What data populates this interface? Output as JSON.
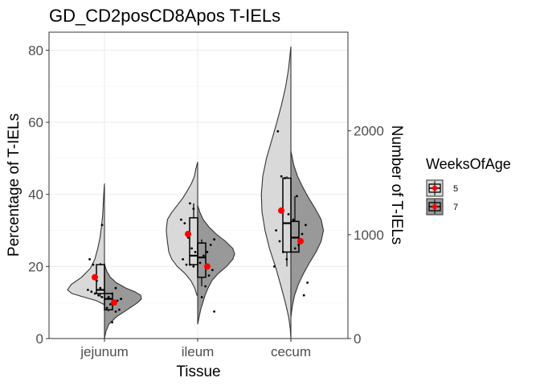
{
  "chart_data": {
    "type": "violin",
    "title": "GD_CD2posCD8Apos T-IELs",
    "xlabel": "Tissue",
    "ylabel": "Percentage of T-IELs",
    "y2label": "Number of T-IELs",
    "categories": [
      "jejunum",
      "ileum",
      "cecum"
    ],
    "ylim": [
      0,
      85
    ],
    "yticks": [
      0,
      20,
      40,
      60,
      80
    ],
    "y2lim": [
      0,
      2950
    ],
    "y2ticks": [
      0,
      1000,
      2000
    ],
    "grid": true,
    "legend": {
      "title": "WeeksOfAge",
      "position": "right",
      "entries": [
        {
          "label": "5",
          "color": "#d9d9d9"
        },
        {
          "label": "7",
          "color": "#999999"
        }
      ]
    },
    "series": [
      {
        "name": "5",
        "fill": "#d9d9d9",
        "side": "left",
        "groups": [
          {
            "category": "jejunum",
            "box": {
              "q1": 12.5,
              "median": 13.5,
              "q3": 20.5,
              "min": 11.5,
              "max": 21
            },
            "mean": 17,
            "points": [
              31.5,
              22,
              20.5,
              16,
              14,
              13.5,
              13,
              12.5,
              12,
              11.5
            ],
            "violin": {
              "ymin": 9.5,
              "ymax": 43,
              "profile": [
                [
                  9.5,
                  0.02
                ],
                [
                  10.5,
                  0.22
                ],
                [
                  11.5,
                  0.55
                ],
                [
                  12.5,
                  0.88
                ],
                [
                  13.5,
                  1.0
                ],
                [
                  15,
                  0.9
                ],
                [
                  17,
                  0.62
                ],
                [
                  19.5,
                  0.38
                ],
                [
                  22,
                  0.26
                ],
                [
                  25,
                  0.18
                ],
                [
                  28,
                  0.12
                ],
                [
                  31,
                  0.08
                ],
                [
                  34,
                  0.05
                ],
                [
                  37,
                  0.035
                ],
                [
                  40,
                  0.02
                ],
                [
                  43,
                  0.0
                ]
              ]
            }
          },
          {
            "category": "ileum",
            "box": {
              "q1": 20.5,
              "median": 23,
              "q3": 33.5,
              "min": 20,
              "max": 37.5
            },
            "mean": 29,
            "points": [
              37.5,
              36,
              33,
              32,
              28,
              25,
              24,
              22,
              20.5,
              20.5,
              20
            ],
            "violin": {
              "ymin": 12,
              "ymax": 49,
              "profile": [
                [
                  12,
                  0.02
                ],
                [
                  14,
                  0.08
                ],
                [
                  16,
                  0.18
                ],
                [
                  18,
                  0.34
                ],
                [
                  20,
                  0.55
                ],
                [
                  22,
                  0.7
                ],
                [
                  24,
                  0.78
                ],
                [
                  27,
                  0.82
                ],
                [
                  30,
                  0.85
                ],
                [
                  33,
                  0.82
                ],
                [
                  35,
                  0.7
                ],
                [
                  37,
                  0.55
                ],
                [
                  39,
                  0.4
                ],
                [
                  41,
                  0.28
                ],
                [
                  43,
                  0.17
                ],
                [
                  45,
                  0.09
                ],
                [
                  47,
                  0.05
                ],
                [
                  49,
                  0.0
                ]
              ]
            }
          },
          {
            "category": "cecum",
            "box": {
              "q1": 24,
              "median": 32,
              "q3": 44.5,
              "min": 20,
              "max": 45
            },
            "mean": 35.5,
            "points": [
              57.5,
              45,
              44.5,
              34.5,
              30,
              27,
              24,
              22,
              20
            ],
            "violin": {
              "ymin": 0,
              "ymax": 81,
              "profile": [
                [
                  0,
                  0.0
                ],
                [
                  3,
                  0.02
                ],
                [
                  6,
                  0.06
                ],
                [
                  10,
                  0.15
                ],
                [
                  15,
                  0.28
                ],
                [
                  20,
                  0.42
                ],
                [
                  25,
                  0.58
                ],
                [
                  30,
                  0.7
                ],
                [
                  35,
                  0.78
                ],
                [
                  40,
                  0.8
                ],
                [
                  45,
                  0.76
                ],
                [
                  50,
                  0.66
                ],
                [
                  55,
                  0.52
                ],
                [
                  60,
                  0.38
                ],
                [
                  65,
                  0.25
                ],
                [
                  70,
                  0.14
                ],
                [
                  75,
                  0.06
                ],
                [
                  81,
                  0.0
                ]
              ]
            }
          }
        ]
      },
      {
        "name": "7",
        "fill": "#999999",
        "side": "right",
        "groups": [
          {
            "category": "jejunum",
            "box": {
              "q1": 8,
              "median": 11,
              "q3": 12.5,
              "min": 7.5,
              "max": 12.5
            },
            "mean": 10,
            "points": [
              14,
              12.5,
              11.5,
              11,
              10.5,
              10,
              9.5,
              8.5,
              8,
              7.5,
              4.5
            ],
            "violin": {
              "ymin": 0,
              "ymax": 21,
              "profile": [
                [
                  0,
                  0.0
                ],
                [
                  2,
                  0.04
                ],
                [
                  4,
                  0.12
                ],
                [
                  6,
                  0.32
                ],
                [
                  8,
                  0.62
                ],
                [
                  10,
                  0.9
                ],
                [
                  11,
                  1.0
                ],
                [
                  12,
                  0.98
                ],
                [
                  13,
                  0.82
                ],
                [
                  14,
                  0.58
                ],
                [
                  15.5,
                  0.32
                ],
                [
                  17,
                  0.16
                ],
                [
                  18.5,
                  0.07
                ],
                [
                  20,
                  0.02
                ],
                [
                  21,
                  0.0
                ]
              ]
            }
          },
          {
            "category": "ileum",
            "box": {
              "q1": 17,
              "median": 22.5,
              "q3": 26.5,
              "min": 14.5,
              "max": 27.5
            },
            "mean": 20,
            "points": [
              27.5,
              26,
              24,
              23,
              21,
              19,
              17.5,
              14.5,
              11.5,
              7.5
            ],
            "violin": {
              "ymin": 4,
              "ymax": 37,
              "profile": [
                [
                  4,
                  0.0
                ],
                [
                  6,
                  0.04
                ],
                [
                  8,
                  0.08
                ],
                [
                  10,
                  0.14
                ],
                [
                  12,
                  0.2
                ],
                [
                  14,
                  0.28
                ],
                [
                  16,
                  0.38
                ],
                [
                  18,
                  0.55
                ],
                [
                  20,
                  0.78
                ],
                [
                  22,
                  0.95
                ],
                [
                  23.5,
                  1.0
                ],
                [
                  25,
                  0.95
                ],
                [
                  27,
                  0.75
                ],
                [
                  29,
                  0.5
                ],
                [
                  31,
                  0.3
                ],
                [
                  33,
                  0.15
                ],
                [
                  35,
                  0.06
                ],
                [
                  37,
                  0.0
                ]
              ]
            }
          },
          {
            "category": "cecum",
            "box": {
              "q1": 24,
              "median": 28,
              "q3": 32.5,
              "min": 24,
              "max": 39.5
            },
            "mean": 27,
            "points": [
              39.5,
              33,
              31.5,
              29,
              26,
              25,
              15.5,
              12
            ],
            "violin": {
              "ymin": 6,
              "ymax": 52,
              "profile": [
                [
                  6,
                  0.0
                ],
                [
                  9,
                  0.04
                ],
                [
                  12,
                  0.1
                ],
                [
                  15,
                  0.2
                ],
                [
                  18,
                  0.34
                ],
                [
                  21,
                  0.5
                ],
                [
                  24,
                  0.68
                ],
                [
                  27,
                  0.82
                ],
                [
                  30,
                  0.88
                ],
                [
                  33,
                  0.82
                ],
                [
                  36,
                  0.66
                ],
                [
                  39,
                  0.48
                ],
                [
                  42,
                  0.32
                ],
                [
                  45,
                  0.18
                ],
                [
                  48,
                  0.08
                ],
                [
                  52,
                  0.0
                ]
              ]
            }
          }
        ]
      }
    ]
  }
}
